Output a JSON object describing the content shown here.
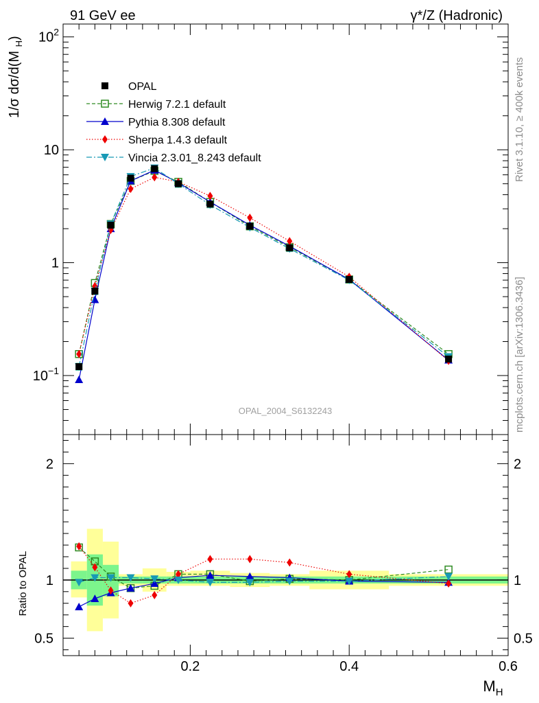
{
  "header": {
    "left": "91 GeV ee",
    "right": "γ*/Z (Hadronic)"
  },
  "side_labels": {
    "rivet": "Rivet 3.1.10, ≥ 400k events",
    "mcplots": "mcplots.cern.ch [arXiv:1306.3436]"
  },
  "watermark": "OPAL_2004_S6132243",
  "colors": {
    "opal": "#000000",
    "herwig": "#2e8b22",
    "pythia": "#0000cc",
    "sherpa": "#ee0000",
    "vincia": "#1899b5",
    "band_inner": "#7cf58c",
    "band_outer": "#ffff99"
  },
  "chart_data": [
    {
      "type": "scatter",
      "title": "",
      "xlabel": "M_H",
      "ylabel": "1/σ dσ/d(M_H)",
      "yscale": "log",
      "xlim": [
        0.04,
        0.6
      ],
      "ylim": [
        0.03,
        130
      ],
      "ytick_labels": [
        "10^-1",
        "1",
        "10",
        "10^2"
      ],
      "legend_position": "top-left",
      "x": [
        0.06,
        0.08,
        0.1,
        0.125,
        0.155,
        0.185,
        0.225,
        0.275,
        0.325,
        0.4,
        0.525
      ],
      "series": [
        {
          "name": "OPAL",
          "key": "opal",
          "marker": "square",
          "line": "none",
          "values": [
            0.12,
            0.56,
            2.15,
            5.6,
            6.8,
            5.0,
            3.3,
            2.1,
            1.35,
            0.71,
            0.14
          ]
        },
        {
          "name": "Herwig 7.2.1 default",
          "key": "herwig",
          "marker": "open-square",
          "line": "dashed",
          "values": [
            0.155,
            0.66,
            2.2,
            5.3,
            6.5,
            5.2,
            3.45,
            2.1,
            1.37,
            0.71,
            0.155
          ]
        },
        {
          "name": "Pythia 8.308 default",
          "key": "pythia",
          "marker": "triangle-up",
          "line": "solid",
          "values": [
            0.092,
            0.47,
            2.0,
            5.3,
            6.6,
            5.1,
            3.45,
            2.15,
            1.4,
            0.71,
            0.137
          ]
        },
        {
          "name": "Sherpa 1.4.3 default",
          "key": "sherpa",
          "marker": "diamond",
          "line": "dotted",
          "values": [
            0.155,
            0.62,
            1.95,
            4.5,
            5.7,
            5.2,
            3.9,
            2.5,
            1.55,
            0.75,
            0.135
          ]
        },
        {
          "name": "Vincia 2.3.01_8.243 default",
          "key": "vincia",
          "marker": "triangle-down",
          "line": "dashdot",
          "values": [
            0.12,
            0.56,
            2.2,
            5.8,
            6.9,
            5.0,
            3.25,
            2.05,
            1.33,
            0.7,
            0.147
          ]
        }
      ]
    },
    {
      "type": "scatter",
      "title": "",
      "xlabel": "M_H",
      "ylabel": "Ratio to OPAL",
      "xlim": [
        0.04,
        0.6
      ],
      "ylim": [
        0.35,
        2.25
      ],
      "xtick_labels": [
        "0.2",
        "0.4",
        "0.6"
      ],
      "ytick_labels": [
        "0.5",
        "1",
        "2"
      ],
      "band_edges": [
        0.05,
        0.07,
        0.09,
        0.11,
        0.14,
        0.17,
        0.2,
        0.25,
        0.3,
        0.35,
        0.45,
        0.6
      ],
      "band_inner": [
        [
          0.92,
          1.08
        ],
        [
          0.78,
          1.22
        ],
        [
          0.86,
          1.13
        ],
        [
          0.97,
          1.03
        ],
        [
          0.97,
          1.03
        ],
        [
          0.97,
          1.03
        ],
        [
          0.97,
          1.03
        ],
        [
          0.97,
          1.03
        ],
        [
          0.97,
          1.03
        ],
        [
          0.97,
          1.03
        ],
        [
          0.97,
          1.03
        ]
      ],
      "band_outer": [
        [
          0.85,
          1.16
        ],
        [
          0.56,
          1.44
        ],
        [
          0.67,
          1.33
        ],
        [
          0.95,
          1.05
        ],
        [
          0.9,
          1.1
        ],
        [
          0.95,
          1.07
        ],
        [
          0.95,
          1.08
        ],
        [
          0.94,
          1.06
        ],
        [
          0.95,
          1.05
        ],
        [
          0.92,
          1.08
        ],
        [
          0.95,
          1.05
        ]
      ],
      "x": [
        0.06,
        0.08,
        0.1,
        0.125,
        0.155,
        0.185,
        0.225,
        0.275,
        0.325,
        0.4,
        0.525
      ],
      "series": [
        {
          "name": "Herwig 7.2.1 default",
          "key": "herwig",
          "marker": "open-square",
          "line": "dashed",
          "values": [
            1.28,
            1.16,
            1.03,
            0.93,
            0.95,
            1.05,
            1.05,
            0.99,
            1.01,
            1.0,
            1.09
          ]
        },
        {
          "name": "Pythia 8.308 default",
          "key": "pythia",
          "marker": "triangle-up",
          "line": "solid",
          "values": [
            0.77,
            0.84,
            0.89,
            0.93,
            0.97,
            1.02,
            1.04,
            1.03,
            1.02,
            0.99,
            0.98
          ]
        },
        {
          "name": "Sherpa 1.4.3 default",
          "key": "sherpa",
          "marker": "diamond",
          "line": "dotted",
          "values": [
            1.29,
            1.11,
            0.91,
            0.8,
            0.87,
            1.05,
            1.18,
            1.18,
            1.15,
            1.05,
            0.97
          ]
        },
        {
          "name": "Vincia 2.3.01_8.243 default",
          "key": "vincia",
          "marker": "triangle-down",
          "line": "dashdot",
          "values": [
            0.98,
            1.02,
            1.02,
            1.02,
            1.01,
            1.0,
            0.98,
            0.98,
            0.99,
            0.99,
            1.03
          ]
        }
      ]
    }
  ]
}
